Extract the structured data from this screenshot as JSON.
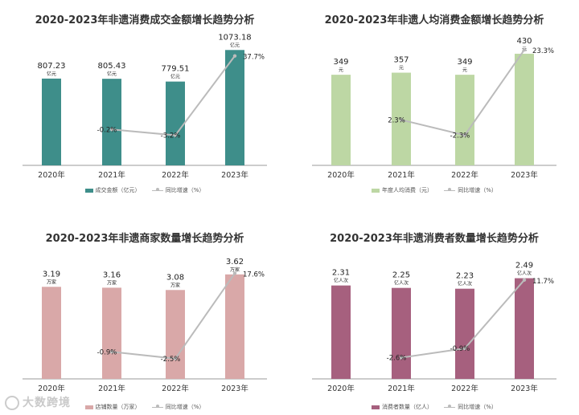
{
  "chart_data": [
    {
      "type": "bar",
      "title": "2020-2023年非遗消费成交金额增长趋势分析",
      "categories": [
        "2020年",
        "2021年",
        "2022年",
        "2023年"
      ],
      "series": [
        {
          "name": "成交金额（亿元）",
          "values": [
            807.23,
            805.43,
            779.51,
            1073.18
          ],
          "color": "#3e8e8a",
          "unit": "亿元"
        },
        {
          "name": "同比增速（%）",
          "type": "line",
          "values": [
            null,
            -0.2,
            -3.2,
            37.7
          ],
          "labels": [
            null,
            "-0.2%",
            "-3.2%",
            "37.7%"
          ]
        }
      ],
      "value_labels": [
        "807.23",
        "805.43",
        "779.51",
        "1073.18"
      ],
      "ylim": [
        0,
        1150
      ],
      "line_range": [
        -10,
        45
      ]
    },
    {
      "type": "bar",
      "title": "2020-2023年非遗人均消费金额增长趋势分析",
      "categories": [
        "2020年",
        "2021年",
        "2022年",
        "2023年"
      ],
      "series": [
        {
          "name": "年度人均消费（元）",
          "values": [
            349,
            357,
            349,
            430
          ],
          "color": "#bdd7a4",
          "unit": "元"
        },
        {
          "name": "同比增速（%）",
          "type": "line",
          "values": [
            null,
            2.3,
            -2.3,
            23.3
          ],
          "labels": [
            null,
            "2.3%",
            "-2.3%",
            "23.3%"
          ]
        }
      ],
      "value_labels": [
        "349",
        "357",
        "349",
        "430"
      ],
      "ylim": [
        0,
        470
      ],
      "line_range": [
        -7,
        25
      ]
    },
    {
      "type": "bar",
      "title": "2020-2023年非遗商家数量增长趋势分析",
      "categories": [
        "2020年",
        "2021年",
        "2022年",
        "2023年"
      ],
      "series": [
        {
          "name": "店铺数量（万家）",
          "values": [
            3.19,
            3.16,
            3.08,
            3.62
          ],
          "color": "#d9a8a8",
          "unit": "万家"
        },
        {
          "name": "同比增速（%）",
          "type": "line",
          "values": [
            null,
            -0.9,
            -2.5,
            17.6
          ],
          "labels": [
            null,
            "-0.9%",
            "-2.5%",
            "17.6%"
          ]
        }
      ],
      "value_labels": [
        "3.19",
        "3.16",
        "3.08",
        "3.62"
      ],
      "ylim": [
        0,
        3.95
      ],
      "line_range": [
        -5,
        19
      ]
    },
    {
      "type": "bar",
      "title": "2020-2023年非遗消费者数量增长趋势分析",
      "categories": [
        "2020年",
        "2021年",
        "2022年",
        "2023年"
      ],
      "series": [
        {
          "name": "消费者数量（亿人）",
          "values": [
            2.31,
            2.25,
            2.23,
            2.49
          ],
          "color": "#a6607e",
          "unit": "亿人次"
        },
        {
          "name": "同比增速（%）",
          "type": "line",
          "values": [
            null,
            -2.6,
            -0.9,
            11.7
          ],
          "labels": [
            null,
            "-2.6%",
            "-0.9%",
            "11.7%"
          ]
        }
      ],
      "value_labels": [
        "2.31",
        "2.25",
        "2.23",
        "2.49"
      ],
      "ylim": [
        0,
        2.72
      ],
      "line_range": [
        -4,
        13
      ]
    }
  ],
  "watermark": "大数跨境",
  "colors": {
    "line": "#bbbbbb",
    "axis": "#555555",
    "text": "#333333"
  }
}
